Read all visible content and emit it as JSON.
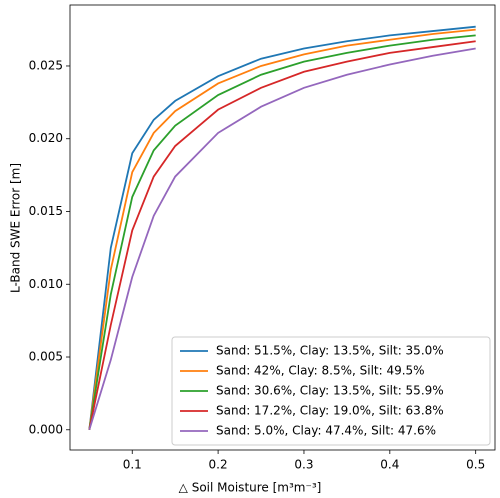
{
  "chart_data": {
    "type": "line",
    "x_label": "△ Soil Moisture [m³m⁻³]",
    "y_label": "L-Band SWE Error [m]",
    "x": [
      0.05,
      0.075,
      0.1,
      0.125,
      0.15,
      0.2,
      0.25,
      0.3,
      0.35,
      0.4,
      0.45,
      0.5
    ],
    "series": [
      {
        "name": "Sand: 51.5%, Clay: 13.5%, Silt: 35.0%",
        "color": "#1f77b4",
        "values": [
          0,
          0.0125,
          0.019,
          0.0213,
          0.0226,
          0.0243,
          0.0255,
          0.0262,
          0.0267,
          0.0271,
          0.0274,
          0.0277
        ]
      },
      {
        "name": "Sand: 42%, Clay: 8.5%, Silt: 49.5%",
        "color": "#ff7f0e",
        "values": [
          0,
          0.011,
          0.0177,
          0.0204,
          0.0219,
          0.0238,
          0.025,
          0.0258,
          0.0264,
          0.0268,
          0.0272,
          0.0275
        ]
      },
      {
        "name": "Sand: 30.6%, Clay: 13.5%, Silt: 55.9%",
        "color": "#2ca02c",
        "values": [
          0,
          0.0093,
          0.016,
          0.0192,
          0.0209,
          0.023,
          0.0244,
          0.0253,
          0.0259,
          0.0264,
          0.0268,
          0.0271
        ]
      },
      {
        "name": "Sand: 17.2%, Clay: 19.0%, Silt: 63.8%",
        "color": "#d62728",
        "values": [
          0,
          0.0072,
          0.0137,
          0.0174,
          0.0195,
          0.022,
          0.0235,
          0.0246,
          0.0253,
          0.0259,
          0.0263,
          0.0267
        ]
      },
      {
        "name": "Sand: 5.0%, Clay: 47.4%, Silt: 47.6%",
        "color": "#9467bd",
        "values": [
          0,
          0.0048,
          0.0105,
          0.0147,
          0.0174,
          0.0204,
          0.0222,
          0.0235,
          0.0244,
          0.0251,
          0.0257,
          0.0262
        ]
      }
    ],
    "xlim": [
      0.0275,
      0.5225
    ],
    "ylim": [
      -0.00139,
      0.02919
    ],
    "xticks": [
      0.1,
      0.2,
      0.3,
      0.4,
      0.5
    ],
    "yticks": [
      {
        "value": 0,
        "label": "0.000"
      },
      {
        "value": 0.005,
        "label": "0.005"
      },
      {
        "value": 0.01,
        "label": "0.010"
      },
      {
        "value": 0.015,
        "label": "0.015"
      },
      {
        "value": 0.02,
        "label": "0.020"
      },
      {
        "value": 0.025,
        "label": "0.025"
      }
    ],
    "legend": "lower right"
  }
}
